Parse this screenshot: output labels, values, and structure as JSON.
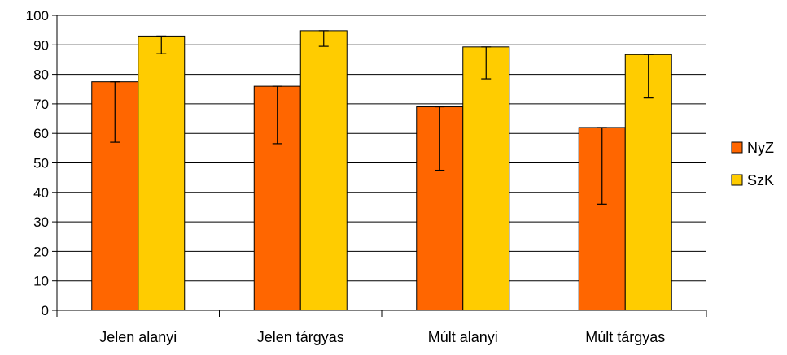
{
  "chart_data": {
    "type": "bar",
    "categories": [
      "Jelen alanyi",
      "Jelen tárgyas",
      "Múlt alanyi",
      "Múlt tárgyas"
    ],
    "series": [
      {
        "name": "NyZ",
        "color": "#FF6600",
        "values": [
          77.5,
          76,
          69,
          62
        ],
        "error_low": [
          57,
          56.5,
          47.5,
          36
        ],
        "error_high": [
          77.5,
          76,
          69,
          62
        ]
      },
      {
        "name": "SzK",
        "color": "#FFCC00",
        "values": [
          93,
          94.8,
          89.3,
          86.7
        ],
        "error_low": [
          87,
          89.5,
          78.5,
          72
        ],
        "error_high": [
          93,
          94.8,
          89.3,
          86.7
        ]
      }
    ],
    "ylim": [
      0,
      100
    ],
    "yticks": [
      "0",
      "10",
      "20",
      "30",
      "40",
      "50",
      "60",
      "70",
      "80",
      "90",
      "100"
    ],
    "grid": true,
    "legend_position": "right"
  }
}
